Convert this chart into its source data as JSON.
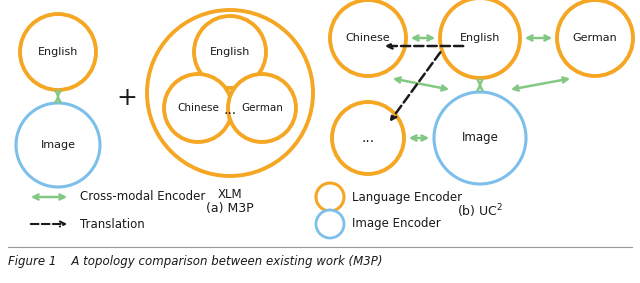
{
  "bg_color": "#ffffff",
  "orange_color": "#F5A623",
  "blue_color": "#7BBFEA",
  "green_color": "#82C882",
  "black_color": "#1a1a1a",
  "lw_orange": 2.8,
  "lw_blue": 2.2,
  "lw_green": 1.8,
  "lw_dashed": 1.5,
  "part_a_label": "(a) M3P",
  "xlm_label": "XLM",
  "plus_symbol": "+",
  "legend_items": {
    "cross_modal": "Cross-modal Encoder",
    "translation": "Translation",
    "language_enc": "Language Encoder",
    "image_enc": "Image Encoder"
  },
  "figure_caption": "Figure 1    A topology comparison between existing work (M3P)"
}
